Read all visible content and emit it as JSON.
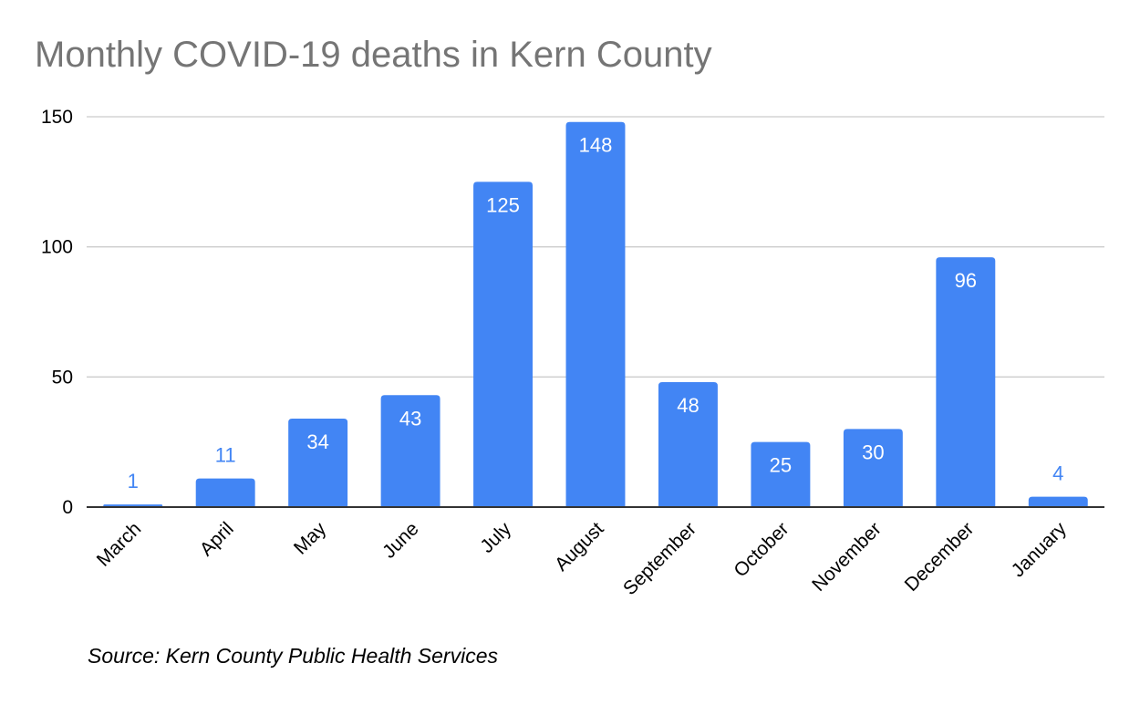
{
  "chart_data": {
    "type": "bar",
    "title": "Monthly COVID-19 deaths in Kern County",
    "categories": [
      "March",
      "April",
      "May",
      "June",
      "July",
      "August",
      "September",
      "October",
      "November",
      "December",
      "January"
    ],
    "values": [
      1,
      11,
      34,
      43,
      125,
      148,
      48,
      25,
      30,
      96,
      4
    ],
    "xlabel": "",
    "ylabel": "",
    "ylim": [
      0,
      150
    ],
    "yticks": [
      0,
      50,
      100,
      150
    ],
    "grid": true,
    "legend": "none",
    "bar_color": "#4285f4",
    "data_labels": true,
    "source_note": "Source: Kern County Public Health Services"
  }
}
